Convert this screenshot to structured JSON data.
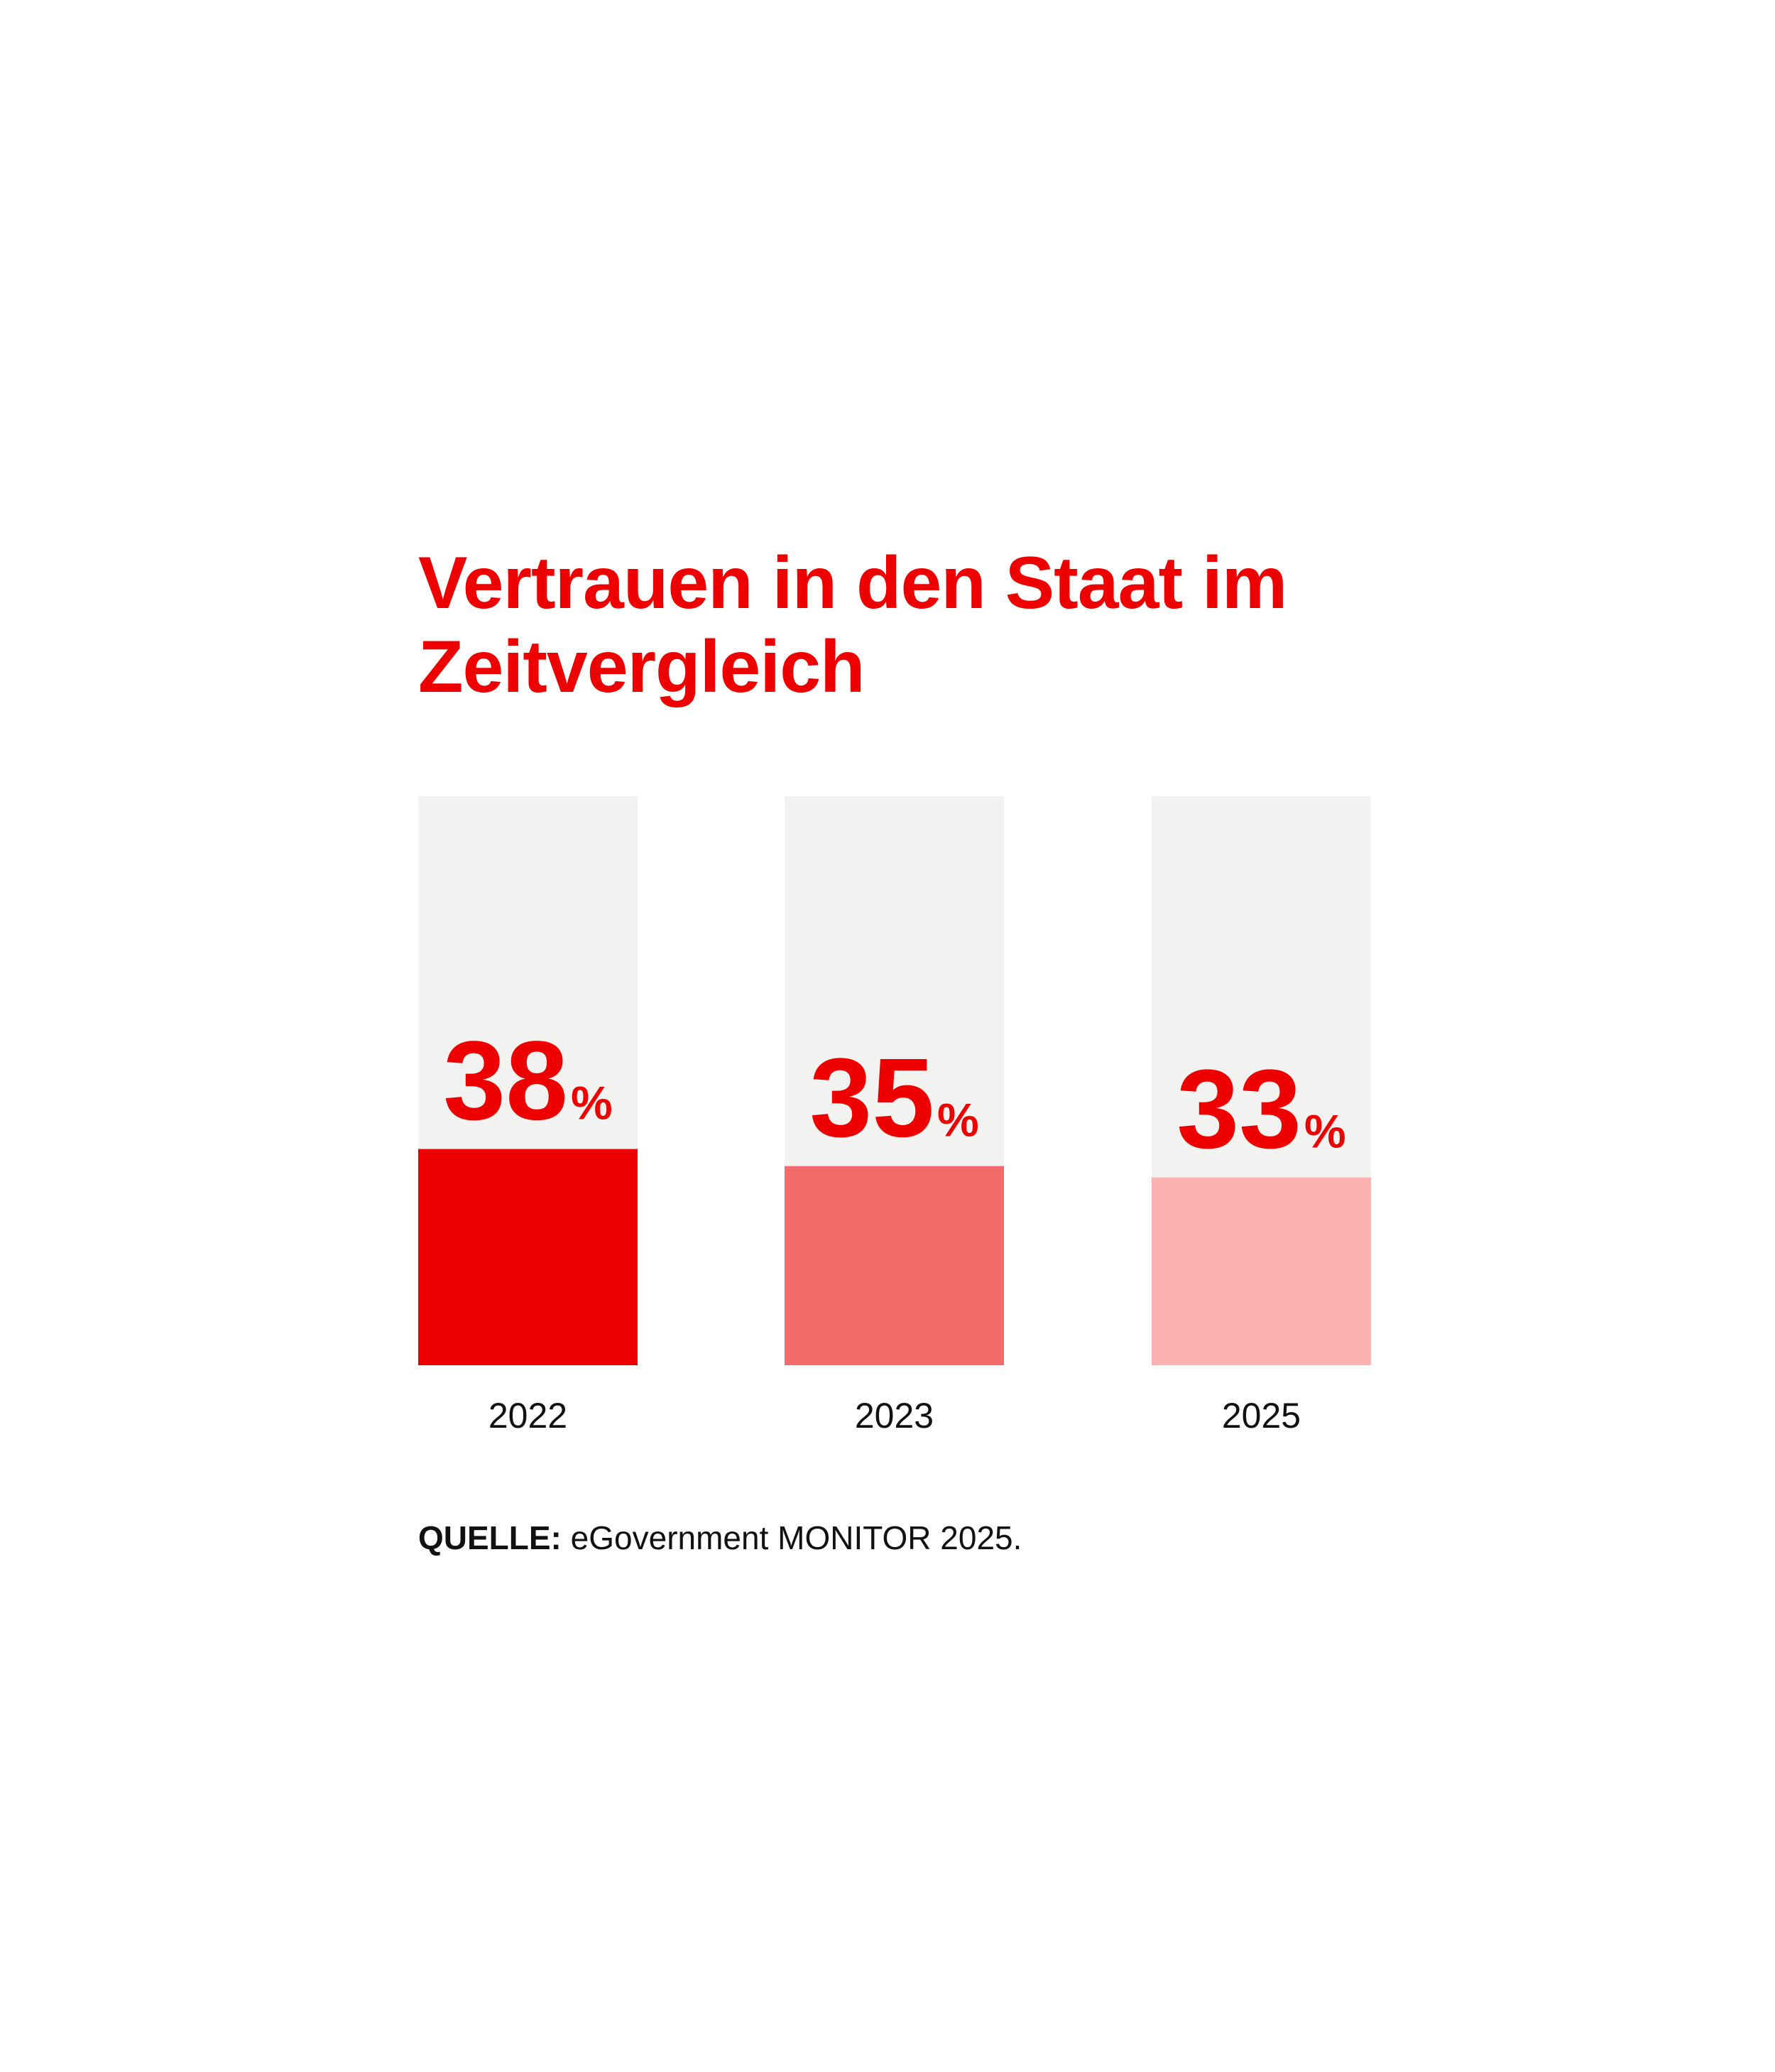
{
  "chart_data": {
    "type": "bar",
    "title": "Vertrauen in den Staat im Zeitvergleich",
    "categories": [
      "2022",
      "2023",
      "2025"
    ],
    "values": [
      38,
      35,
      33
    ],
    "value_labels": [
      "38",
      "35",
      "33"
    ],
    "unit": "%",
    "ylim": [
      0,
      100
    ],
    "grid": false,
    "colors": [
      "#ee0000",
      "#f4696a",
      "#f9b1b2"
    ],
    "track_color": "#f2f2f0",
    "label_color": "#ee0000"
  },
  "source": {
    "label": "QUELLE:",
    "text": "eGovernment MONITOR 2025."
  }
}
